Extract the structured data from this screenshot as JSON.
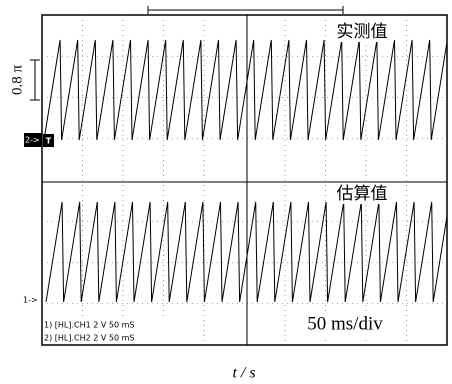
{
  "screen": {
    "upper_label": "实测值",
    "lower_label": "估算值",
    "scale_bar_label": "0.8 π",
    "ch2_marker": "2->",
    "trigger_marker": "T",
    "ch1_marker": "1->",
    "ch1_info": "1) [HL].CH1 2 V 50 mS",
    "ch2_info": "2) [HL].CH2 2 V 50 mS",
    "timebase": "50 ms/div"
  },
  "x_axis_label": "t / s"
}
